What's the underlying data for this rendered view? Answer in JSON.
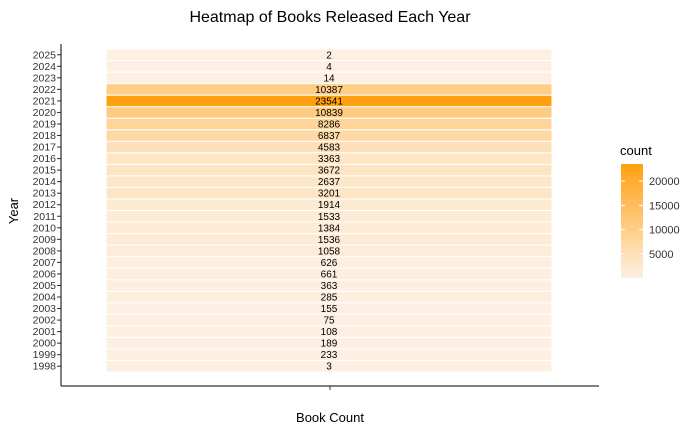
{
  "chart_data": {
    "type": "heatmap",
    "title": "Heatmap of Books Released Each Year",
    "xlabel": "Book Count",
    "ylabel": "Year",
    "y_categories": [
      "1998",
      "1999",
      "2000",
      "2001",
      "2002",
      "2003",
      "2004",
      "2005",
      "2006",
      "2007",
      "2008",
      "2009",
      "2010",
      "2011",
      "2012",
      "2013",
      "2014",
      "2015",
      "2016",
      "2017",
      "2018",
      "2019",
      "2020",
      "2021",
      "2022",
      "2023",
      "2024",
      "2025"
    ],
    "values": [
      3,
      233,
      189,
      108,
      75,
      155,
      285,
      363,
      661,
      626,
      1058,
      1536,
      1384,
      1533,
      1914,
      3201,
      2637,
      3672,
      3363,
      4583,
      6837,
      8286,
      10839,
      23541,
      10387,
      14,
      4,
      2
    ],
    "color_scale": {
      "low": "#fdf0e3",
      "high": "#ffa010",
      "min": 2,
      "max": 23541
    },
    "grid": false,
    "legend": {
      "title": "count",
      "placement": "right",
      "ticks": [
        5000,
        10000,
        15000,
        20000
      ]
    }
  }
}
